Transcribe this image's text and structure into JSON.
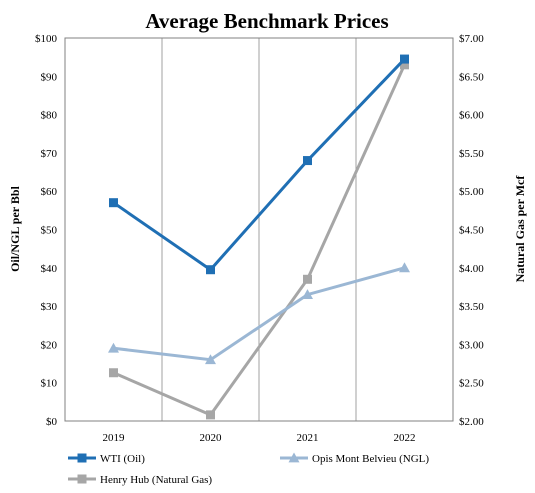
{
  "chart_data": {
    "type": "line",
    "title": "Average Benchmark Prices",
    "categories": [
      "2019",
      "2020",
      "2021",
      "2022"
    ],
    "y_left": {
      "label": "Oil/NGL per Bbl",
      "range": [
        0,
        100
      ],
      "ticks": [
        "$0",
        "$10",
        "$20",
        "$30",
        "$40",
        "$50",
        "$60",
        "$70",
        "$80",
        "$90",
        "$100"
      ]
    },
    "y_right": {
      "label": "Natural Gas per Mcf",
      "range": [
        2.0,
        7.0
      ],
      "ticks": [
        "$2.00",
        "$2.50",
        "$3.00",
        "$3.50",
        "$4.00",
        "$4.50",
        "$5.00",
        "$5.50",
        "$6.00",
        "$6.50",
        "$7.00"
      ]
    },
    "grid": "vertical",
    "legend_position": "bottom",
    "series": [
      {
        "name": "WTI (Oil)",
        "axis": "left",
        "values": [
          57.0,
          39.5,
          68.0,
          94.5
        ],
        "color": "#1f6fb4",
        "marker": "square"
      },
      {
        "name": "Opis Mont Belvieu (NGL)",
        "axis": "left",
        "values": [
          19.0,
          16.0,
          33.0,
          40.0
        ],
        "color": "#9bb7d4",
        "marker": "triangle"
      },
      {
        "name": "Henry Hub (Natural Gas)",
        "axis": "right",
        "values": [
          2.63,
          2.08,
          3.85,
          6.65
        ],
        "color": "#a6a6a6",
        "marker": "square"
      }
    ]
  }
}
